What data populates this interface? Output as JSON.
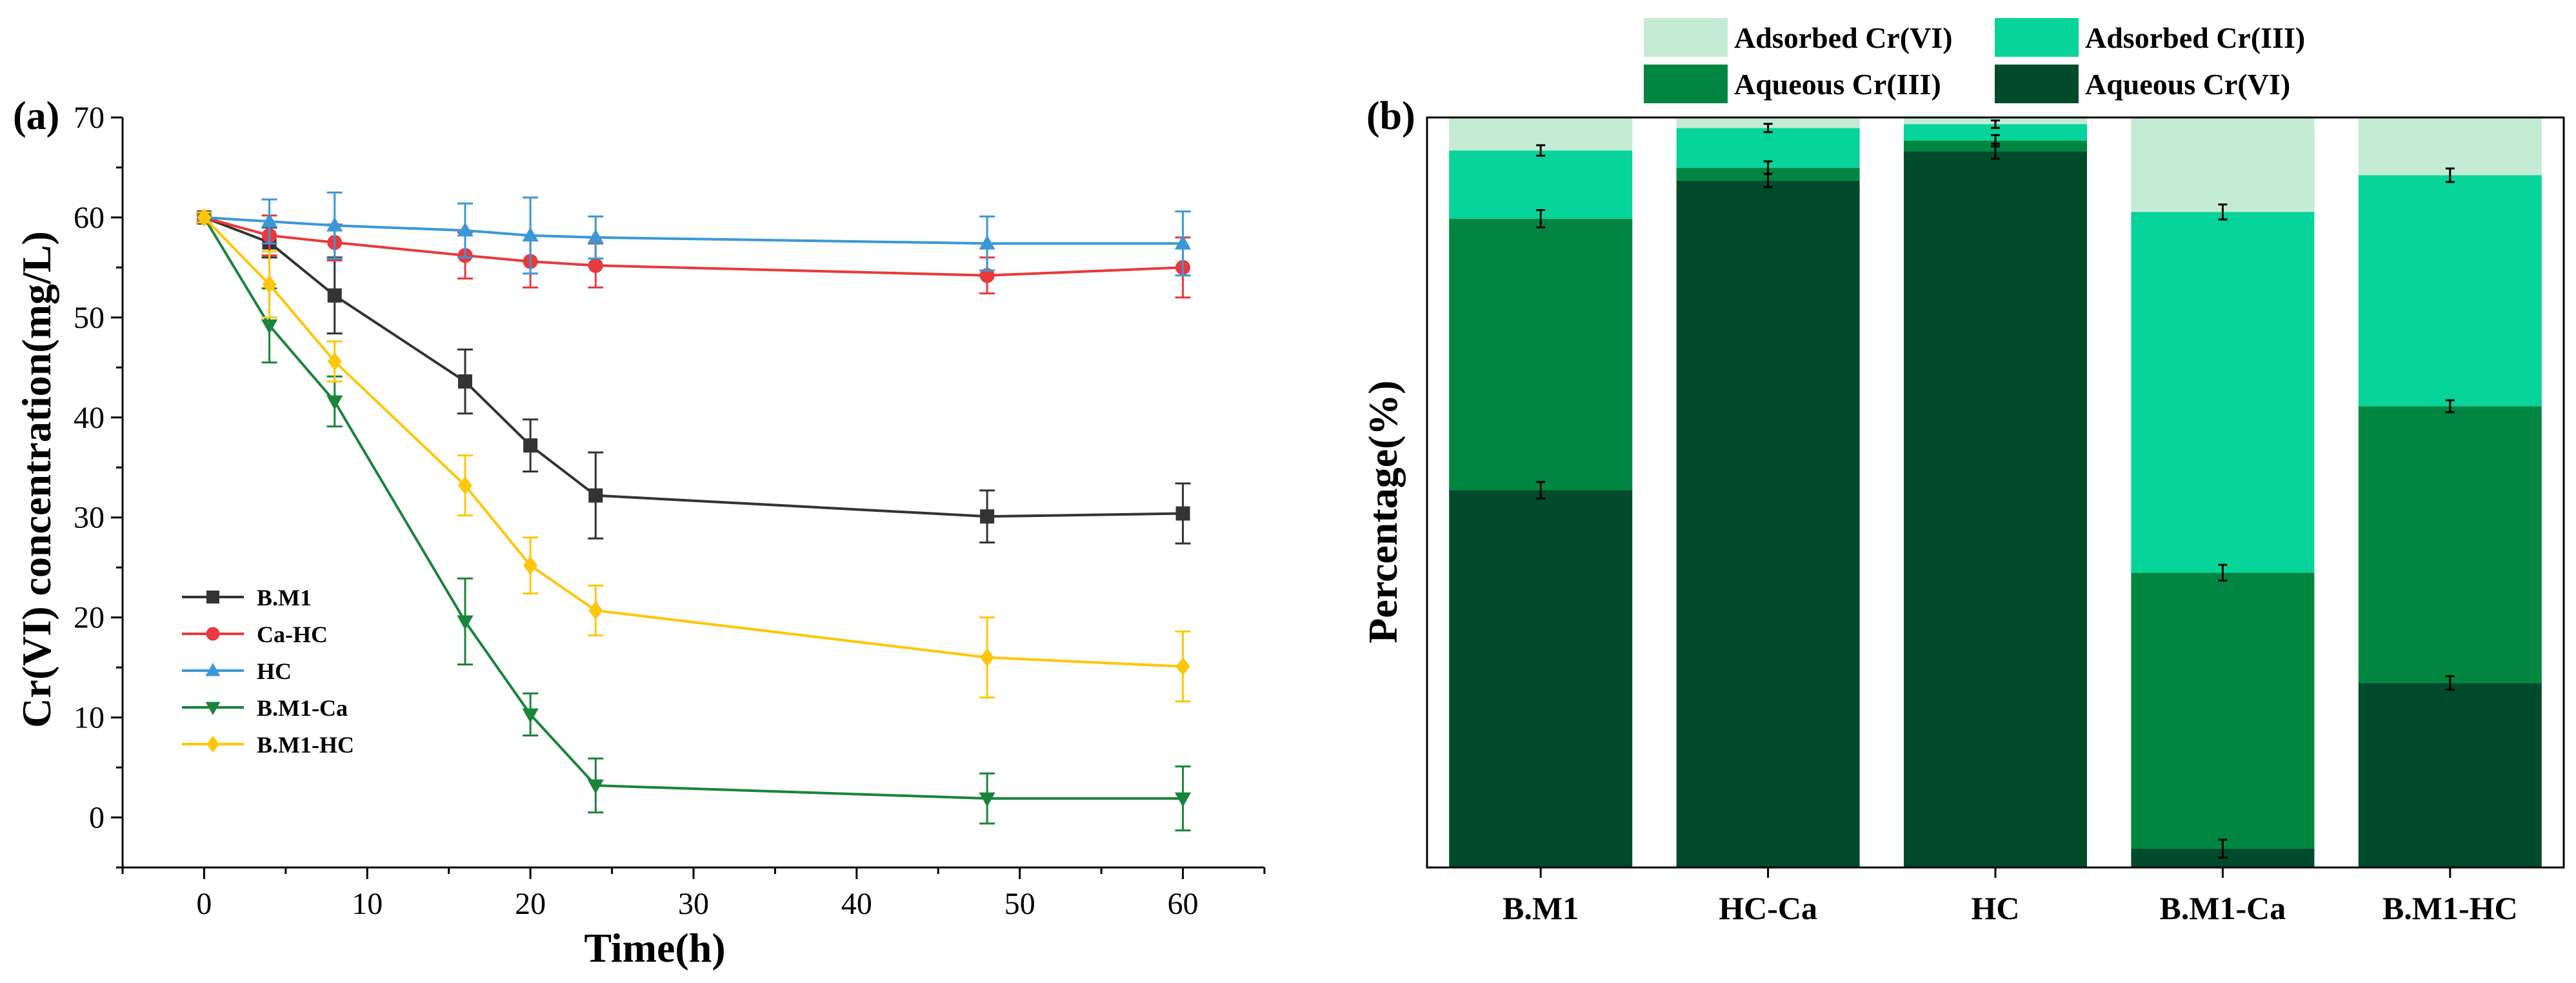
{
  "chart_data": [
    {
      "type": "line",
      "panel_label": "(a)",
      "xlabel": "Time(h)",
      "ylabel": "Cr(VI) concentration(mg/L)",
      "xlim": [
        -5,
        65
      ],
      "ylim": [
        -5,
        70
      ],
      "xticks": [
        0,
        10,
        20,
        30,
        40,
        50,
        60
      ],
      "yticks": [
        0,
        10,
        20,
        30,
        40,
        50,
        60,
        70
      ],
      "grid": false,
      "legend_position": "bottom-left",
      "x": [
        0,
        4,
        8,
        16,
        20,
        24,
        48,
        60
      ],
      "series": [
        {
          "name": "B.M1",
          "color": "#333333",
          "marker": "square",
          "values": [
            60,
            57.5,
            52.2,
            43.6,
            37.2,
            32.2,
            30.1,
            30.4
          ],
          "errors": [
            0.5,
            1.5,
            3.8,
            3.2,
            2.6,
            4.3,
            2.6,
            3.0
          ]
        },
        {
          "name": "Ca-HC",
          "color": "#e8393c",
          "marker": "circle",
          "values": [
            60,
            58.2,
            57.5,
            56.2,
            55.6,
            55.2,
            54.2,
            55.0
          ],
          "errors": [
            0.5,
            2.0,
            1.8,
            2.3,
            2.6,
            2.2,
            1.8,
            3.0
          ]
        },
        {
          "name": "HC",
          "color": "#3b98d8",
          "marker": "triangle-up",
          "values": [
            60,
            59.6,
            59.2,
            58.7,
            58.2,
            58.0,
            57.4,
            57.4
          ],
          "errors": [
            0.5,
            2.2,
            3.3,
            2.7,
            3.8,
            2.1,
            2.7,
            3.2
          ]
        },
        {
          "name": "B.M1-Ca",
          "color": "#19843a",
          "marker": "triangle-down",
          "values": [
            60,
            49.2,
            41.6,
            19.6,
            10.3,
            3.2,
            1.9,
            1.9
          ],
          "errors": [
            0.5,
            3.7,
            2.5,
            4.3,
            2.1,
            2.7,
            2.5,
            3.2
          ]
        },
        {
          "name": "B.M1-HC",
          "color": "#ffc60a",
          "marker": "diamond",
          "values": [
            60,
            53.3,
            45.6,
            33.2,
            25.2,
            20.7,
            16.0,
            15.1
          ],
          "errors": [
            0.5,
            3.3,
            2.0,
            3.0,
            2.8,
            2.5,
            4.0,
            3.5
          ]
        }
      ]
    },
    {
      "type": "bar",
      "stacked": true,
      "panel_label": "(b)",
      "xlabel": "",
      "ylabel": "Percentage(%)",
      "ylim": [
        0,
        100
      ],
      "grid": false,
      "legend_position": "top",
      "categories": [
        "B.M1",
        "HC-Ca",
        "HC",
        "B.M1-Ca",
        "B.M1-HC"
      ],
      "legend": [
        {
          "name": "Adsorbed Cr(VI)",
          "color": "#c4ecd4"
        },
        {
          "name": "Adsorbed Cr(III)",
          "color": "#06d49b"
        },
        {
          "name": "Aqueous Cr(III)",
          "color": "#008641"
        },
        {
          "name": "Aqueous Cr(VI)",
          "color": "#004b2c"
        }
      ],
      "series": [
        {
          "name": "Aqueous Cr(VI)",
          "color": "#004b2c",
          "values": [
            50.3,
            91.6,
            95.5,
            2.5,
            24.6
          ],
          "errors": [
            2.2,
            1.8,
            2.0,
            2.4,
            1.8
          ]
        },
        {
          "name": "Aqueous Cr(III)",
          "color": "#008641",
          "values": [
            36.2,
            1.7,
            1.4,
            36.8,
            36.9
          ],
          "errors": [
            2.3,
            1.7,
            1.5,
            2.1,
            1.6
          ]
        },
        {
          "name": "Adsorbed Cr(III)",
          "color": "#06d49b",
          "values": [
            9.1,
            5.3,
            2.2,
            48.1,
            30.8
          ],
          "errors": [
            1.4,
            1.1,
            1.0,
            2.0,
            1.8
          ]
        },
        {
          "name": "Adsorbed Cr(VI)",
          "color": "#c4ecd4",
          "values": [
            4.4,
            1.4,
            0.9,
            12.6,
            7.7
          ],
          "errors": [
            0,
            0,
            0,
            0,
            0
          ]
        }
      ]
    }
  ]
}
